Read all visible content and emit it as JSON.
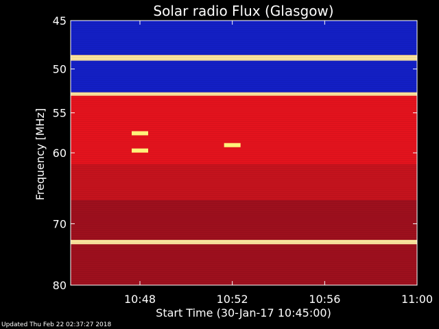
{
  "chart_data": {
    "type": "heatmap",
    "title": "Solar radio Flux (Glasgow)",
    "xlabel": "Start Time (30-Jan-17 10:45:00)",
    "ylabel": "Frequency [MHz]",
    "xlim": [
      "10:45",
      "11:00"
    ],
    "ylim": [
      45,
      80
    ],
    "y_inverted": true,
    "y_scale": "log",
    "x_ticks": [
      "10:48",
      "10:52",
      "10:56",
      "11:00"
    ],
    "y_ticks": [
      45,
      50,
      55,
      60,
      70,
      80
    ],
    "bands": [
      {
        "from": 45.0,
        "to": 48.5,
        "level": "low"
      },
      {
        "from": 48.5,
        "to": 49.1,
        "level": "very-high"
      },
      {
        "from": 49.1,
        "to": 52.6,
        "level": "low"
      },
      {
        "from": 52.6,
        "to": 53.0,
        "level": "very-high"
      },
      {
        "from": 53.0,
        "to": 56.0,
        "level": "high"
      },
      {
        "from": 56.0,
        "to": 61.5,
        "level": "high"
      },
      {
        "from": 61.5,
        "to": 66.5,
        "level": "medium"
      },
      {
        "from": 66.5,
        "to": 72.5,
        "level": "medium-low"
      },
      {
        "from": 72.5,
        "to": 73.2,
        "level": "very-high"
      },
      {
        "from": 73.2,
        "to": 80.0,
        "level": "medium-low"
      }
    ],
    "bursts": [
      {
        "time": "10:48",
        "freq": 57.5,
        "level": "very-high"
      },
      {
        "time": "10:48",
        "freq": 59.7,
        "level": "very-high"
      },
      {
        "time": "10:52",
        "freq": 59.0,
        "level": "very-high"
      }
    ]
  },
  "footer": {
    "updated": "Updated Thu Feb 22 02:37:27 2018"
  },
  "colors": {
    "low": "#1420c8",
    "medium-low": "#a0101e",
    "medium": "#c8141e",
    "high": "#e8141e",
    "very-high": "#ffe8a0",
    "burst": "#fff27a"
  }
}
